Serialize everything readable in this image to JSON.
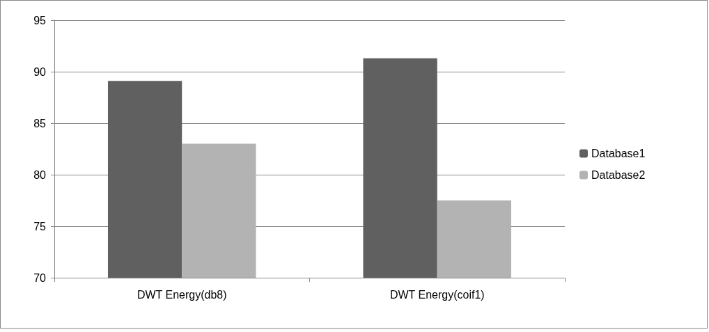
{
  "chart_data": {
    "type": "bar",
    "categories": [
      "DWT Energy(db8)",
      "DWT Energy(coif1)"
    ],
    "series": [
      {
        "name": "Database1",
        "color": "#606060",
        "values": [
          89.1,
          91.3
        ]
      },
      {
        "name": "Database2",
        "color": "#b3b3b3",
        "values": [
          83.0,
          77.5
        ]
      }
    ],
    "ylim": [
      70,
      95
    ],
    "yticks": [
      70,
      75,
      80,
      85,
      90,
      95
    ],
    "grid": "y",
    "legend": "right"
  }
}
